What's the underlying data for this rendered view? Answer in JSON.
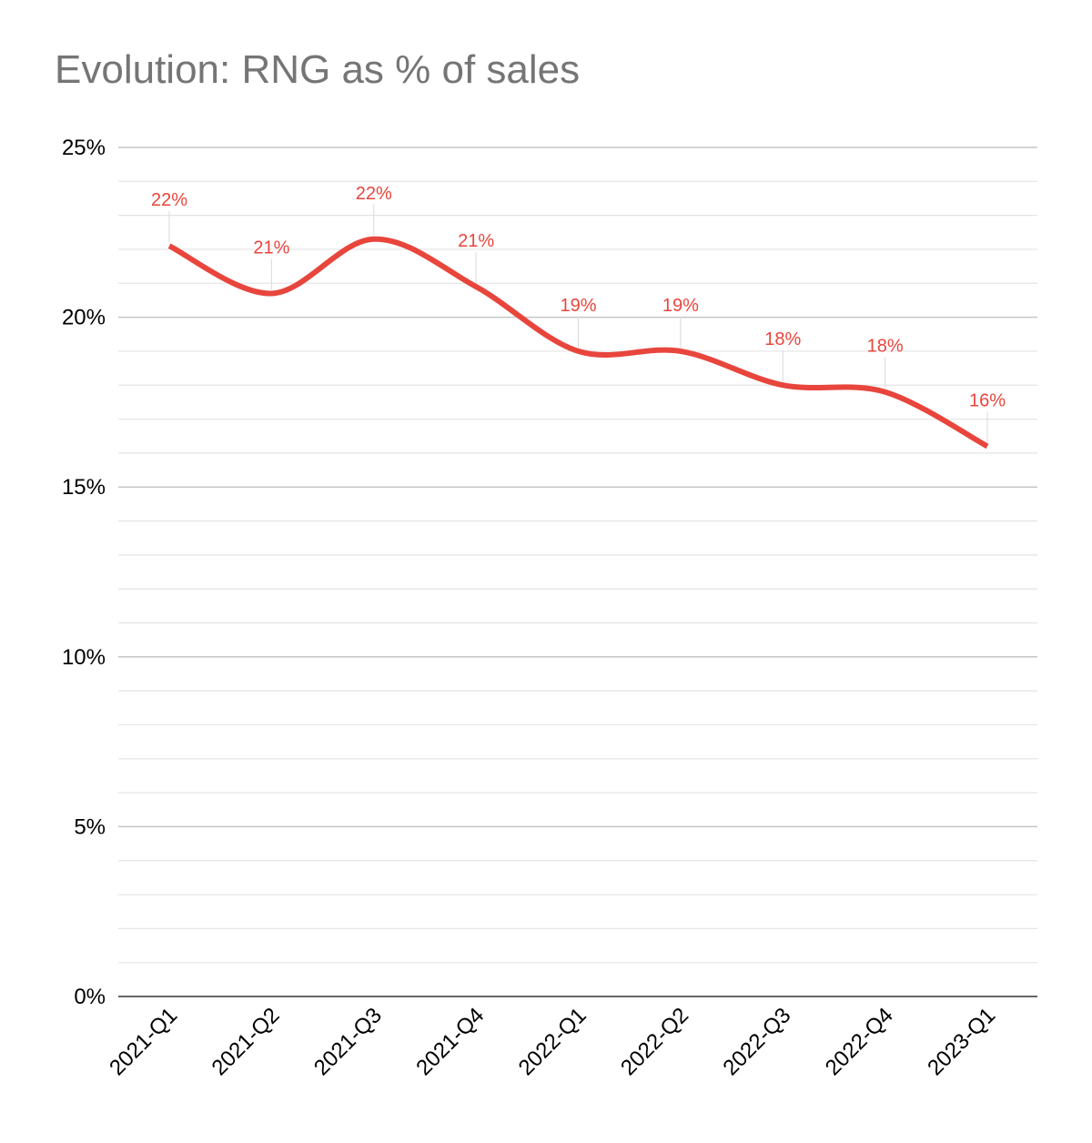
{
  "chart_data": {
    "type": "line",
    "title": "Evolution: RNG as % of sales",
    "xlabel": "",
    "ylabel": "",
    "categories": [
      "2021-Q1",
      "2021-Q2",
      "2021-Q3",
      "2021-Q4",
      "2022-Q1",
      "2022-Q2",
      "2022-Q3",
      "2022-Q4",
      "2023-Q1"
    ],
    "series": [
      {
        "values": [
          22.1,
          20.7,
          22.3,
          20.9,
          19.0,
          19.0,
          18.0,
          17.8,
          16.2
        ],
        "data_labels": [
          "22%",
          "21%",
          "22%",
          "21%",
          "19%",
          "19%",
          "18%",
          "18%",
          "16%"
        ],
        "color": "#e8453c"
      }
    ],
    "ylim": [
      0,
      25
    ],
    "yticks": [
      0,
      5,
      10,
      15,
      20,
      25
    ],
    "ytick_labels": [
      "0%",
      "5%",
      "10%",
      "15%",
      "20%",
      "25%"
    ],
    "minor_gridlines_per_major": 5,
    "grid": true,
    "legend": "none",
    "smooth": true
  },
  "colors": {
    "title": "#757575",
    "line": "#e8453c",
    "major_grid": "#c6c6c6",
    "minor_grid": "#e4e4e4",
    "axis": "#333333"
  }
}
